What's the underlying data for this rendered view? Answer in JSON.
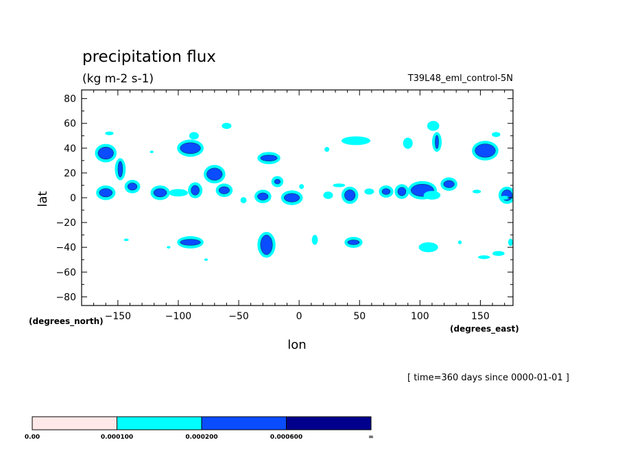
{
  "chart_data": {
    "type": "contour",
    "title": "precipitation flux",
    "units": "(kg m-2 s-1)",
    "run_label": "T39L48_eml_control-5N",
    "xlabel": "lon",
    "ylabel": "lat",
    "x_units": "(degrees_east)",
    "y_units": "(degrees_north)",
    "xlim": [
      -180,
      177
    ],
    "ylim": [
      -87,
      87
    ],
    "xticks": [
      -150,
      -100,
      -50,
      0,
      50,
      100,
      150
    ],
    "xtick_labels": [
      "−150",
      "−100",
      "−50",
      "0",
      "50",
      "100",
      "150"
    ],
    "yticks": [
      80,
      60,
      40,
      20,
      0,
      -20,
      -40,
      -60,
      -80
    ],
    "ytick_labels": [
      "80",
      "60",
      "40",
      "20",
      "0",
      "−20",
      "−40",
      "−60",
      "−80"
    ],
    "time_note": "[ time=360 days since 0000-01-01 ]",
    "levels": [
      "0.00",
      "0.000100",
      "0.000200",
      "0.000600",
      "∞"
    ],
    "level_colors": [
      "#ffe8e8",
      "#00ffff",
      "#0a4cff",
      "#00008c"
    ],
    "features": [
      {
        "lon": -160,
        "lat": 36,
        "w": 14,
        "h": 11,
        "level": 2
      },
      {
        "lon": -160,
        "lat": 4,
        "w": 12,
        "h": 8,
        "level": 2
      },
      {
        "lon": -157,
        "lat": 52,
        "w": 7,
        "h": 3,
        "level": 1
      },
      {
        "lon": -148,
        "lat": 23,
        "w": 5,
        "h": 14,
        "level": 2
      },
      {
        "lon": -138,
        "lat": 9,
        "w": 9,
        "h": 7,
        "level": 2
      },
      {
        "lon": -115,
        "lat": 4,
        "w": 12,
        "h": 8,
        "level": 2
      },
      {
        "lon": -100,
        "lat": 4,
        "w": 16,
        "h": 6,
        "level": 1
      },
      {
        "lon": -90,
        "lat": 40,
        "w": 18,
        "h": 10,
        "level": 2
      },
      {
        "lon": -87,
        "lat": 50,
        "w": 8,
        "h": 6,
        "level": 1
      },
      {
        "lon": -86,
        "lat": 6,
        "w": 8,
        "h": 9,
        "level": 2
      },
      {
        "lon": -70,
        "lat": 19,
        "w": 14,
        "h": 11,
        "level": 2
      },
      {
        "lon": -62,
        "lat": 6,
        "w": 10,
        "h": 7,
        "level": 2
      },
      {
        "lon": -60,
        "lat": 58,
        "w": 8,
        "h": 5,
        "level": 1
      },
      {
        "lon": -25,
        "lat": 32,
        "w": 15,
        "h": 6,
        "level": 2
      },
      {
        "lon": -18,
        "lat": 13,
        "w": 6,
        "h": 5,
        "level": 2
      },
      {
        "lon": -30,
        "lat": 1,
        "w": 10,
        "h": 7,
        "level": 2
      },
      {
        "lon": -6,
        "lat": 0,
        "w": 14,
        "h": 8,
        "level": 2
      },
      {
        "lon": -46,
        "lat": -2,
        "w": 5,
        "h": 5,
        "level": 1
      },
      {
        "lon": 2,
        "lat": 9,
        "w": 4,
        "h": 4,
        "level": 1
      },
      {
        "lon": -27,
        "lat": -38,
        "w": 11,
        "h": 17,
        "level": 2
      },
      {
        "lon": -90,
        "lat": -36,
        "w": 18,
        "h": 6,
        "level": 2
      },
      {
        "lon": -143,
        "lat": -34,
        "w": 4,
        "h": 2,
        "level": 1
      },
      {
        "lon": 13,
        "lat": -34,
        "w": 5,
        "h": 8,
        "level": 1
      },
      {
        "lon": 45,
        "lat": -36,
        "w": 11,
        "h": 5,
        "level": 2
      },
      {
        "lon": 42,
        "lat": 2,
        "w": 10,
        "h": 10,
        "level": 2
      },
      {
        "lon": 24,
        "lat": 2,
        "w": 8,
        "h": 6,
        "level": 1
      },
      {
        "lon": 47,
        "lat": 46,
        "w": 24,
        "h": 7,
        "level": 1
      },
      {
        "lon": 23,
        "lat": 39,
        "w": 4,
        "h": 4,
        "level": 1
      },
      {
        "lon": 33,
        "lat": 10,
        "w": 10,
        "h": 3,
        "level": 1
      },
      {
        "lon": 58,
        "lat": 5,
        "w": 8,
        "h": 5,
        "level": 1
      },
      {
        "lon": 72,
        "lat": 5,
        "w": 8,
        "h": 6,
        "level": 2
      },
      {
        "lon": 85,
        "lat": 5,
        "w": 8,
        "h": 8,
        "level": 2
      },
      {
        "lon": 102,
        "lat": 6,
        "w": 20,
        "h": 11,
        "level": 2
      },
      {
        "lon": 110,
        "lat": 2,
        "w": 14,
        "h": 7,
        "level": 1
      },
      {
        "lon": 124,
        "lat": 11,
        "w": 10,
        "h": 7,
        "level": 2
      },
      {
        "lon": 90,
        "lat": 44,
        "w": 8,
        "h": 9,
        "level": 1
      },
      {
        "lon": 111,
        "lat": 58,
        "w": 10,
        "h": 8,
        "level": 1
      },
      {
        "lon": 114,
        "lat": 45,
        "w": 4,
        "h": 12,
        "level": 2
      },
      {
        "lon": 147,
        "lat": 5,
        "w": 7,
        "h": 3,
        "level": 1
      },
      {
        "lon": 154,
        "lat": 38,
        "w": 18,
        "h": 12,
        "level": 2
      },
      {
        "lon": 163,
        "lat": 51,
        "w": 7,
        "h": 4,
        "level": 1
      },
      {
        "lon": 172,
        "lat": 2,
        "w": 10,
        "h": 10,
        "level": 2
      },
      {
        "lon": 107,
        "lat": -40,
        "w": 16,
        "h": 8,
        "level": 1
      },
      {
        "lon": 153,
        "lat": -48,
        "w": 10,
        "h": 3,
        "level": 1
      },
      {
        "lon": 165,
        "lat": -45,
        "w": 10,
        "h": 4,
        "level": 1
      },
      {
        "lon": 175,
        "lat": -36,
        "w": 4,
        "h": 6,
        "level": 1
      },
      {
        "lon": 133,
        "lat": -36,
        "w": 3,
        "h": 3,
        "level": 1
      },
      {
        "lon": 170,
        "lat": 0,
        "w": 8,
        "h": 3,
        "level": 1
      },
      {
        "lon": -108,
        "lat": -40,
        "w": 3,
        "h": 2,
        "level": 1
      },
      {
        "lon": -77,
        "lat": -50,
        "w": 3,
        "h": 2,
        "level": 1
      },
      {
        "lon": -122,
        "lat": 37,
        "w": 3,
        "h": 2,
        "level": 1
      }
    ]
  }
}
